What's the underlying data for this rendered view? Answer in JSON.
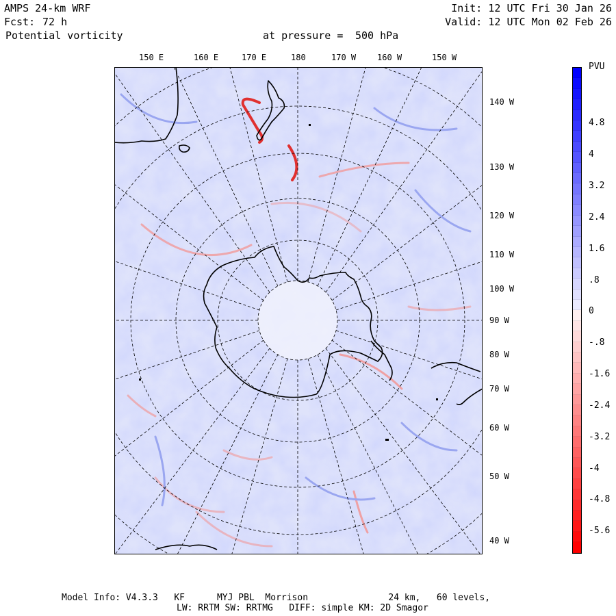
{
  "header": {
    "model": "AMPS 24-km WRF",
    "fcst_label": "Fcst:",
    "fcst_value": "72 h",
    "field": "Potential vorticity",
    "pressure_label": "at pressure =",
    "pressure_value": "500 hPa",
    "init": "Init: 12 UTC Fri 30 Jan 26",
    "valid": "Valid: 12 UTC Mon 02 Feb 26"
  },
  "map": {
    "top_longitudes": [
      "150 E",
      "160 E",
      "170 E",
      "180",
      "170 W",
      "160 W",
      "150 W"
    ],
    "right_longitudes": [
      "140 W",
      "130 W",
      "120 W",
      "110 W",
      "100 W",
      "90 W",
      "80 W",
      "70 W",
      "60 W",
      "50 W",
      "40 W"
    ]
  },
  "colorbar": {
    "unit": "PVU",
    "labels": [
      "4.8",
      "4",
      "3.2",
      "2.4",
      "1.6",
      ".8",
      "0",
      "-.8",
      "-1.6",
      "-2.4",
      "-3.2",
      "-4",
      "-4.8",
      "-5.6"
    ],
    "positive_color": "#0000ff",
    "negative_color": "#ff0000"
  },
  "footer": {
    "line1": "Model Info: V4.3.3   KF      MYJ PBL  Morrison               24 km,   60 levels,",
    "line2": "LW: RRTM SW: RRTMG   DIFF: simple KM: 2D Smagor"
  }
}
